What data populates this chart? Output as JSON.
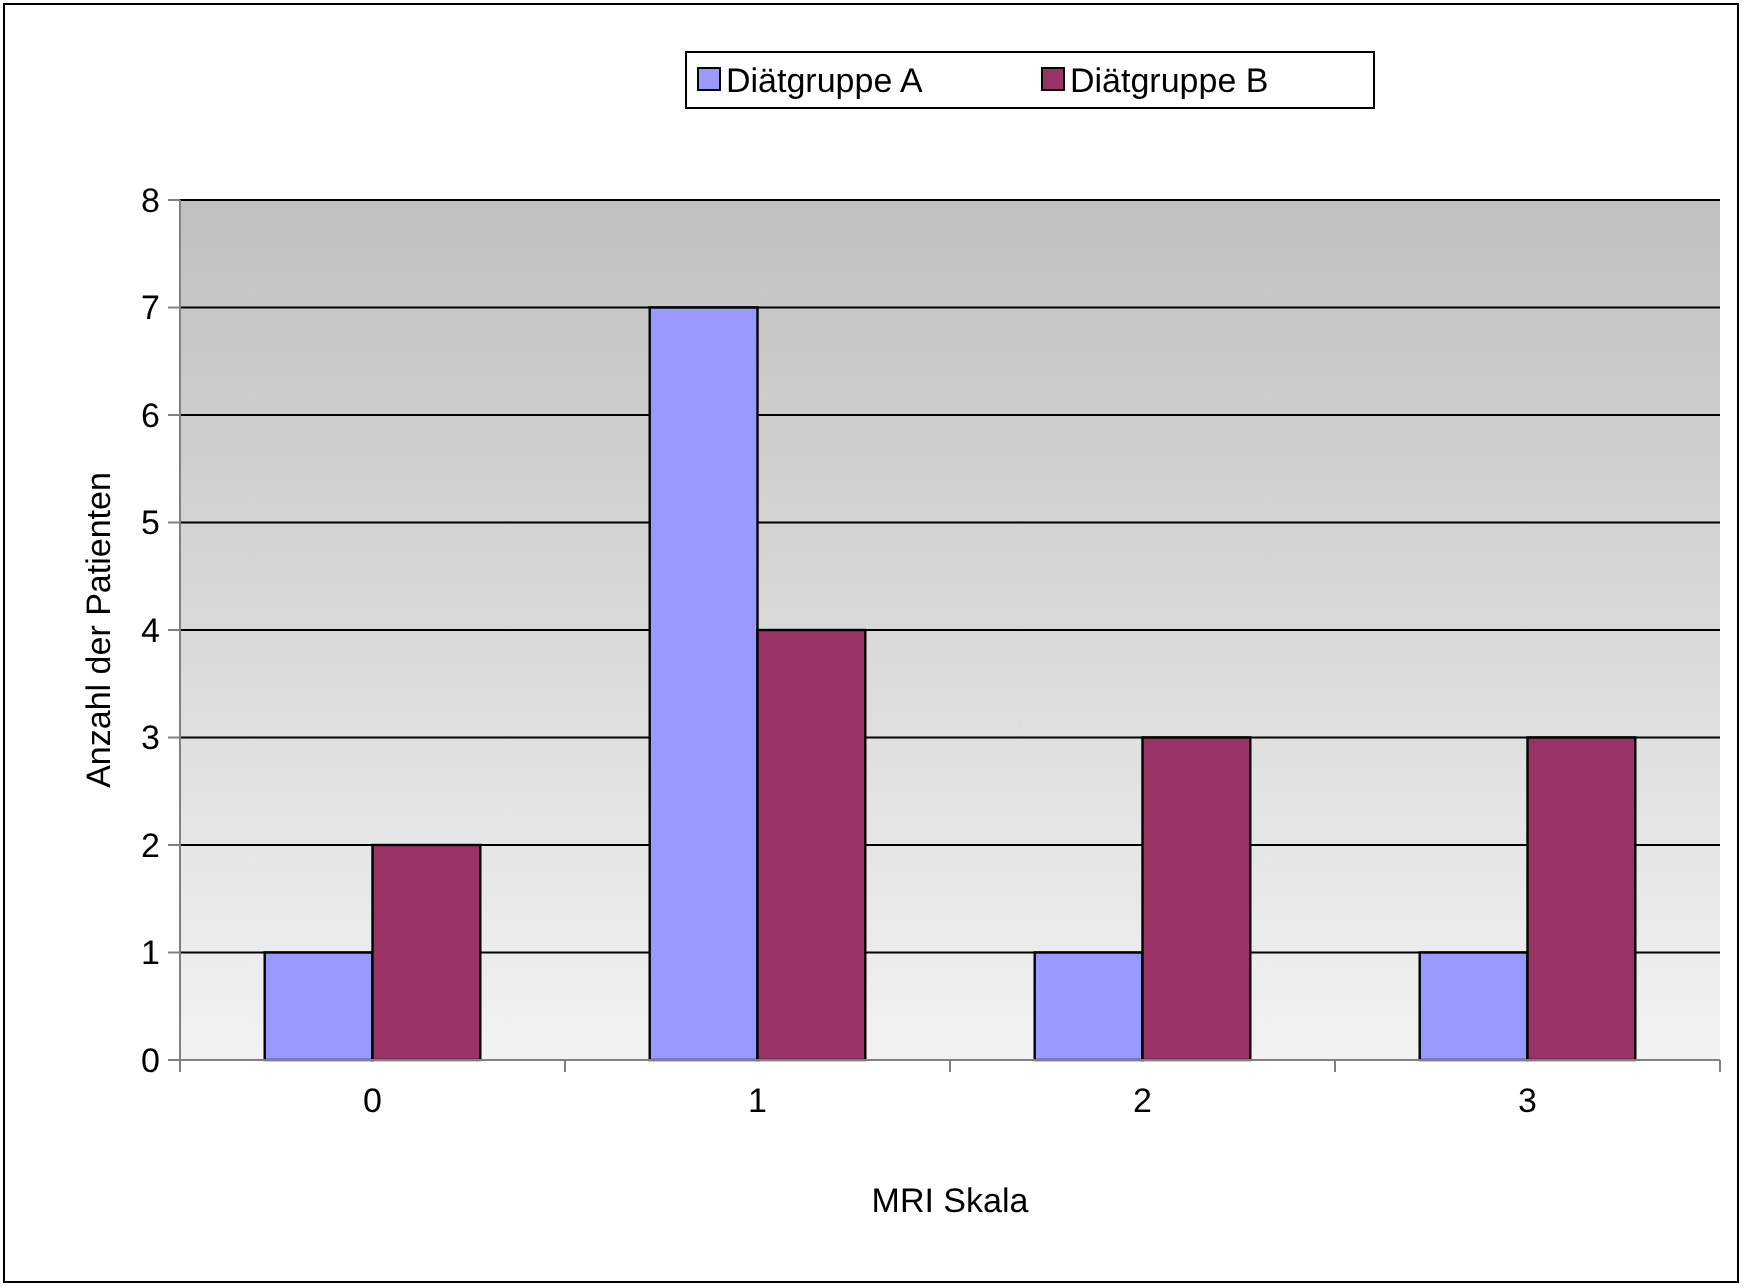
{
  "chart_data": {
    "type": "bar",
    "xlabel": "MRI Skala",
    "ylabel": "Anzahl der Patienten",
    "categories": [
      "0",
      "1",
      "2",
      "3"
    ],
    "series": [
      {
        "name": "Diätgruppe A",
        "color": "#9999ff",
        "values": [
          1,
          7,
          1,
          1
        ]
      },
      {
        "name": "Diätgruppe B",
        "color": "#993366",
        "values": [
          2,
          4,
          3,
          3
        ]
      }
    ],
    "ylim": [
      0,
      8
    ],
    "yticks": [
      0,
      1,
      2,
      3,
      4,
      5,
      6,
      7,
      8
    ],
    "grid": "y",
    "legend": "top"
  }
}
